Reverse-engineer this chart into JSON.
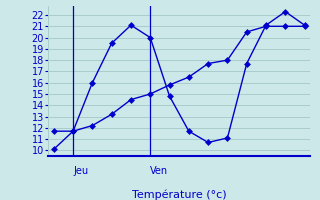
{
  "title": "Température (°c)",
  "background_color": "#cce8e8",
  "grid_color": "#aacccc",
  "line_color": "#0000cc",
  "text_color": "#0000cc",
  "ylabel_ticks": [
    10,
    11,
    12,
    13,
    14,
    15,
    16,
    17,
    18,
    19,
    20,
    21,
    22
  ],
  "ylim": [
    9.5,
    22.8
  ],
  "xlim": [
    -0.3,
    13.3
  ],
  "xtick_positions": [
    1,
    5
  ],
  "xtick_labels": [
    "Jeu",
    "Ven"
  ],
  "vline_positions": [
    1,
    5
  ],
  "s1_x": [
    0,
    1,
    2,
    3,
    4,
    5,
    6,
    7,
    8,
    9,
    10,
    11,
    12,
    13
  ],
  "s1_y": [
    10.1,
    11.7,
    16.0,
    19.5,
    21.1,
    20.0,
    14.8,
    11.7,
    10.7,
    11.1,
    17.7,
    21.1,
    22.3,
    21.1
  ],
  "s2_x": [
    0,
    1,
    2,
    3,
    4,
    5,
    6,
    7,
    8,
    9,
    10,
    11,
    12,
    13
  ],
  "s2_y": [
    11.7,
    11.7,
    12.2,
    13.2,
    14.5,
    15.0,
    15.8,
    16.5,
    17.7,
    18.0,
    20.5,
    21.0,
    21.0,
    21.0
  ]
}
